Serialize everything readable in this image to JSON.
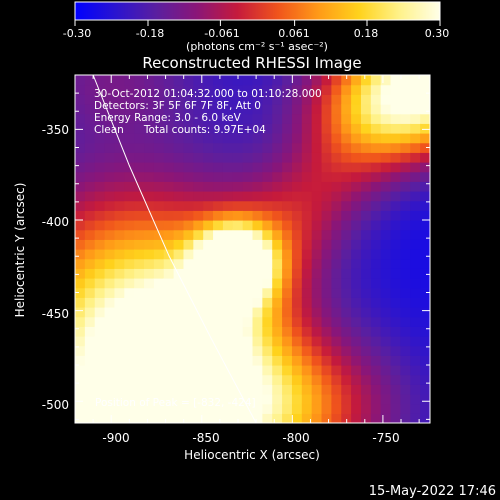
{
  "colorbar": {
    "tick_labels": [
      "-0.30",
      "-0.18",
      "-0.061",
      "0.061",
      "0.18",
      "0.30"
    ],
    "units_label": "(photons cm⁻² s⁻¹ asec⁻²)",
    "colormap": [
      "#0000ff",
      "#2a14d0",
      "#5a1fa0",
      "#8a1678",
      "#c51a3c",
      "#f0541c",
      "#ff9a18",
      "#ffd21c",
      "#fff28a",
      "#ffffe8"
    ]
  },
  "plot": {
    "title": "Reconstructed RHESSI Image",
    "annotations": [
      "30-Oct-2012 01:04:32.000 to 01:10:28.000",
      "Detectors: 3F 5F 6F 7F 8F, Att 0",
      "Energy Range: 3.0 - 6.0 keV",
      "Clean      Total counts: 9.97E+04"
    ],
    "peak_label": "Position of Peak = [-832, -424]",
    "date_stamp": "15-May-2022 17:46"
  },
  "chart_data": {
    "type": "heatmap",
    "title": "Reconstructed RHESSI Image",
    "xlabel": "Heliocentric X (arcsec)",
    "ylabel": "Heliocentric Y (arcsec)",
    "xlim": [
      -920,
      -724
    ],
    "ylim": [
      -512,
      -320
    ],
    "x_ticks": [
      -900,
      -850,
      -800,
      -750
    ],
    "y_ticks": [
      -350,
      -400,
      -450,
      -500
    ],
    "colorbar_range": [
      -0.3,
      0.3
    ],
    "colorbar_ticks": [
      -0.3,
      -0.18,
      -0.061,
      0.061,
      0.18,
      0.3
    ],
    "peak_position": [
      -832,
      -424
    ],
    "limb_arc": [
      [
        -910,
        -320
      ],
      [
        -890,
        -370
      ],
      [
        -868,
        -420
      ],
      [
        -845,
        -465
      ],
      [
        -820,
        -512
      ]
    ],
    "regions": [
      {
        "x": -885,
        "y": -460,
        "sx": 55,
        "sy": 55,
        "amp": 0.55
      },
      {
        "x": -830,
        "y": -505,
        "sx": 55,
        "sy": 30,
        "amp": 0.4
      },
      {
        "x": -832,
        "y": -424,
        "sx": 14,
        "sy": 14,
        "amp": 0.55
      },
      {
        "x": -730,
        "y": -330,
        "sx": 40,
        "sy": 25,
        "amp": 0.45
      },
      {
        "x": -900,
        "y": -320,
        "sx": 40,
        "sy": 25,
        "amp": 0.12
      }
    ]
  }
}
